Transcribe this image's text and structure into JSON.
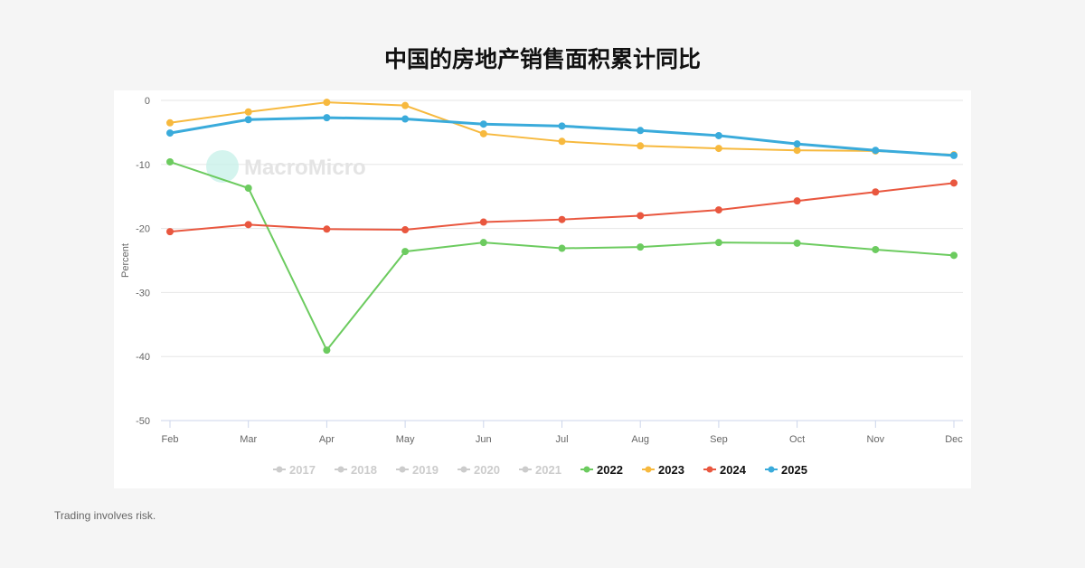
{
  "title": "中国的房地产销售面积累计同比",
  "footer": "Trading involves risk.",
  "watermark": "MacroMicro",
  "chart_data": {
    "type": "line",
    "title": "中国的房地产销售面积累计同比",
    "ylabel": "Percent",
    "xlabel": "",
    "categories": [
      "Feb",
      "Mar",
      "Apr",
      "May",
      "Jun",
      "Jul",
      "Aug",
      "Sep",
      "Oct",
      "Nov",
      "Dec"
    ],
    "ylim": [
      -50,
      0
    ],
    "yticks": [
      0,
      -10,
      -20,
      -30,
      -40,
      -50
    ],
    "grid": true,
    "legend_placement": "bottom",
    "legend": [
      {
        "name": "2017",
        "active": false,
        "color": "#cccccc"
      },
      {
        "name": "2018",
        "active": false,
        "color": "#cccccc"
      },
      {
        "name": "2019",
        "active": false,
        "color": "#cccccc"
      },
      {
        "name": "2020",
        "active": false,
        "color": "#cccccc"
      },
      {
        "name": "2021",
        "active": false,
        "color": "#cccccc"
      },
      {
        "name": "2022",
        "active": true,
        "color": "#6ccb5f"
      },
      {
        "name": "2023",
        "active": true,
        "color": "#f7b93e"
      },
      {
        "name": "2024",
        "active": true,
        "color": "#e9573f"
      },
      {
        "name": "2025",
        "active": true,
        "color": "#3aabdb"
      }
    ],
    "series": [
      {
        "name": "2022",
        "color": "#6ccb5f",
        "values": [
          -9.6,
          -13.7,
          -39.0,
          -23.6,
          -22.2,
          -23.1,
          -22.9,
          -22.2,
          -22.3,
          -23.3,
          -24.2
        ]
      },
      {
        "name": "2023",
        "color": "#f7b93e",
        "values": [
          -3.5,
          -1.8,
          -0.3,
          -0.8,
          -5.2,
          -6.4,
          -7.1,
          -7.5,
          -7.8,
          -7.9,
          -8.5
        ]
      },
      {
        "name": "2024",
        "color": "#e9573f",
        "values": [
          -20.5,
          -19.4,
          -20.1,
          -20.2,
          -19.0,
          -18.6,
          -18.0,
          -17.1,
          -15.7,
          -14.3,
          -12.9
        ]
      },
      {
        "name": "2025",
        "color": "#3aabdb",
        "values": [
          -5.1,
          -3.0,
          -2.7,
          -2.9,
          -3.7,
          -4.0,
          -4.7,
          -5.5,
          -6.8,
          -7.8,
          -8.6
        ]
      }
    ]
  }
}
